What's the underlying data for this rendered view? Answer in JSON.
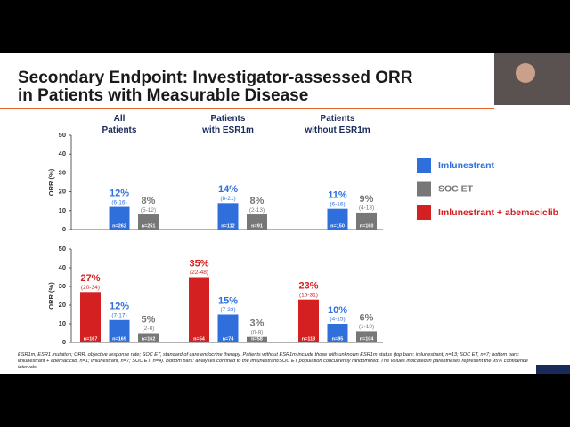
{
  "slide": {
    "title_lines": [
      "Secondary Endpoint: Investigator-assessed ORR",
      "in Patients with Measurable Disease"
    ],
    "footnote": "ESR1m, ESR1 mutation; ORR, objective response rate; SOC ET, standard of care endocrine therapy. Patients without ESR1m include those with unknown ESR1m status (top bars: imlunestrant, n=13; SOC ET, n=7; bottom bars: imlunestrant + abemaciclib, n=1; imlunestrant, n=7; SOC ET, n=4). Bottom bars: analyses confined to the imlunestrant/SOC ET population concurrently randomized. The values indicated in parentheses represent the 95% confidence intervals."
  },
  "chart_data": [
    {
      "type": "bar",
      "y_label": "ORR (%)",
      "categories": [
        "All Patients",
        "Patients with ESR1m",
        "Patients without ESR1m"
      ],
      "ylim": [
        0,
        50
      ],
      "yticks": [
        0,
        10,
        20,
        30,
        40,
        50
      ],
      "series": [
        {
          "name": "Imlunestrant",
          "color": "#2f6fdc",
          "values": [
            12,
            14,
            11
          ],
          "value_labels": [
            "12%",
            "14%",
            "11%"
          ],
          "ci_labels": [
            "(6-16)",
            "(8-21)",
            "(6-16)"
          ],
          "n_labels": [
            "n=262",
            "n=112",
            "n=150"
          ]
        },
        {
          "name": "SOC ET",
          "color": "#777777",
          "values": [
            8,
            8,
            9
          ],
          "value_labels": [
            "8%",
            "8%",
            "9%"
          ],
          "ci_labels": [
            "(5-12)",
            "(2-13)",
            "(4-13)"
          ],
          "n_labels": [
            "n=251",
            "n=91",
            "n=160"
          ]
        }
      ]
    },
    {
      "type": "bar",
      "y_label": "ORR (%)",
      "ylim": [
        0,
        50
      ],
      "yticks": [
        0,
        10,
        20,
        30,
        40,
        50
      ],
      "series": [
        {
          "name": "Imlunestrant + abemaciclib",
          "color": "#d42020",
          "values": [
            27,
            35,
            23
          ],
          "value_labels": [
            "27%",
            "35%",
            "23%"
          ],
          "ci_labels": [
            "(20-34)",
            "(22-48)",
            "(15-31)"
          ],
          "n_labels": [
            "n=167",
            "n=54",
            "n=113"
          ]
        },
        {
          "color": "#2f6fdc",
          "values": [
            12,
            15,
            10
          ],
          "value_labels": [
            "12%",
            "15%",
            "10%"
          ],
          "ci_labels": [
            "(7-17)",
            "(7-23)",
            "(4-15)"
          ],
          "n_labels": [
            "n=169",
            "n=74",
            "n=95"
          ]
        },
        {
          "color": "#777777",
          "values": [
            5,
            3,
            6
          ],
          "value_labels": [
            "5%",
            "3%",
            "6%"
          ],
          "ci_labels": [
            "(2-8)",
            "(0-8)",
            "(1-10)"
          ],
          "n_labels": [
            "n=162",
            "n=58",
            "n=104"
          ]
        }
      ]
    }
  ]
}
